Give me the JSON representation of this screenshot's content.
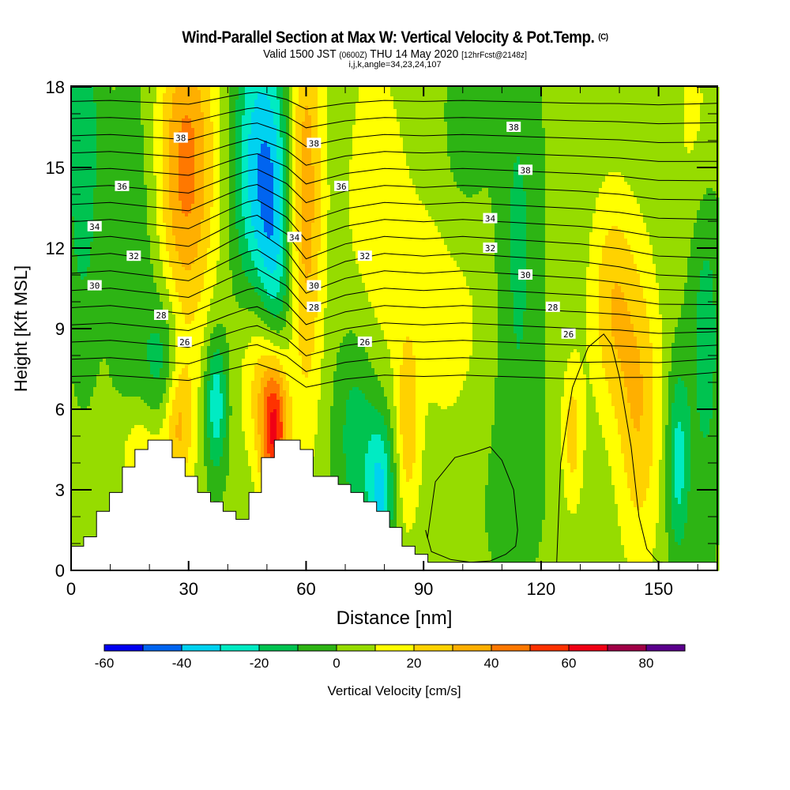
{
  "header": {
    "title": "Wind-Parallel Section at Max W: Vertical Velocity & Pot.Temp.",
    "title_mark": "(C)",
    "valid_prefix": "Valid 1500 JST",
    "valid_utc": "(0600Z)",
    "valid_date": "THU 14 May 2020",
    "forecast": "[12hrFcst@2148z]",
    "indices": "i,j,k,angle=34,23,24,107"
  },
  "chart_data": {
    "type": "heatmap",
    "title": "Wind-Parallel Section at Max W: Vertical Velocity & Pot.Temp.",
    "xlabel": "Distance [nm]",
    "ylabel": "Height [Kft MSL]",
    "xlim": [
      0,
      165
    ],
    "ylim": [
      0,
      18
    ],
    "xticks": [
      "0",
      "30",
      "60",
      "90",
      "120",
      "150"
    ],
    "xtick_values": [
      0,
      30,
      60,
      90,
      120,
      150
    ],
    "yticks": [
      "0",
      "3",
      "6",
      "9",
      "12",
      "15",
      "18"
    ],
    "ytick_values": [
      0,
      3,
      6,
      9,
      12,
      15,
      18
    ],
    "colorbar": {
      "label": "Vertical Velocity [cm/s]",
      "levels": [
        -60,
        -50,
        -40,
        -30,
        -20,
        -10,
        0,
        10,
        20,
        30,
        40,
        50,
        60,
        70,
        80,
        90
      ],
      "tick_labels": [
        "-60",
        "-40",
        "-20",
        "0",
        "20",
        "40",
        "60",
        "80"
      ],
      "tick_values": [
        -60,
        -40,
        -20,
        0,
        20,
        40,
        60,
        80
      ],
      "colors": [
        "#0000f0",
        "#0064f0",
        "#00d2f0",
        "#00ebc3",
        "#00c350",
        "#2db414",
        "#96dc00",
        "#ffff00",
        "#ffd200",
        "#ffaf00",
        "#ff7800",
        "#ff3200",
        "#f00014",
        "#a00046",
        "#5a008c"
      ]
    },
    "vertical_velocity_features": [
      {
        "x": 3,
        "y": 16,
        "w": -22,
        "sx": 3,
        "sy": 5
      },
      {
        "x": 30,
        "y": 15.5,
        "w": 28,
        "sx": 5,
        "sy": 4
      },
      {
        "x": 27,
        "y": 13.5,
        "w": 16,
        "sx": 6,
        "sy": 5
      },
      {
        "x": 47,
        "y": 15,
        "w": -35,
        "sx": 4,
        "sy": 4
      },
      {
        "x": 52,
        "y": 11.5,
        "w": -32,
        "sx": 3,
        "sy": 5
      },
      {
        "x": 60,
        "y": 14,
        "w": 32,
        "sx": 3,
        "sy": 6
      },
      {
        "x": 52,
        "y": 5.2,
        "w": 62,
        "sx": 2.5,
        "sy": 2
      },
      {
        "x": 49,
        "y": 7.5,
        "w": 28,
        "sx": 4,
        "sy": 2.5
      },
      {
        "x": 27,
        "y": 5.5,
        "w": 30,
        "sx": 3,
        "sy": 1.8
      },
      {
        "x": 18,
        "y": 4.2,
        "w": 22,
        "sx": 4,
        "sy": 1.5
      },
      {
        "x": 37,
        "y": 6.2,
        "w": -32,
        "sx": 2,
        "sy": 1.8
      },
      {
        "x": 24,
        "y": 7.5,
        "w": -22,
        "sx": 3,
        "sy": 2
      },
      {
        "x": 79,
        "y": 3,
        "w": -35,
        "sx": 2.5,
        "sy": 2
      },
      {
        "x": 73,
        "y": 5.2,
        "w": -22,
        "sx": 4,
        "sy": 3
      },
      {
        "x": 86,
        "y": 5.5,
        "w": 22,
        "sx": 2,
        "sy": 2.5
      },
      {
        "x": 108,
        "y": 3,
        "w": -5,
        "sx": 10,
        "sy": 3
      },
      {
        "x": 128,
        "y": 5,
        "w": 22,
        "sx": 2,
        "sy": 2
      },
      {
        "x": 138,
        "y": 10,
        "w": 24,
        "sx": 4,
        "sy": 3
      },
      {
        "x": 145,
        "y": 6,
        "w": 26,
        "sx": 4,
        "sy": 4
      },
      {
        "x": 155,
        "y": 4,
        "w": -28,
        "sx": 2,
        "sy": 2.5
      },
      {
        "x": 162,
        "y": 9,
        "w": -18,
        "sx": 3,
        "sy": 5
      },
      {
        "x": 100,
        "y": 16,
        "w": -16,
        "sx": 5,
        "sy": 3
      },
      {
        "x": 114,
        "y": 12,
        "w": -16,
        "sx": 4,
        "sy": 6
      },
      {
        "x": 97,
        "y": 11,
        "w": 12,
        "sx": 8,
        "sy": 6
      },
      {
        "x": 77,
        "y": 12.5,
        "w": 12,
        "sx": 6,
        "sy": 6
      },
      {
        "x": 160,
        "y": 16.5,
        "w": 12,
        "sx": 4,
        "sy": 3
      },
      {
        "x": 18,
        "y": 11,
        "w": -14,
        "sx": 5,
        "sy": 6
      }
    ],
    "background_w": 3,
    "potential_temperature": {
      "levels": [
        24,
        25,
        26,
        27,
        28,
        29,
        30,
        31,
        32,
        33,
        34,
        35,
        36,
        37,
        38,
        39,
        40
      ],
      "base_height_kft": 8.5,
      "kft_per_level": 0.64,
      "profile_x": [
        0,
        10,
        20,
        30,
        40,
        47,
        55,
        60,
        70,
        80,
        90,
        100,
        110,
        120,
        130,
        140,
        150,
        165
      ],
      "profile_dy": [
        0,
        0.1,
        -0.1,
        -0.3,
        0.5,
        1.0,
        0.2,
        -0.8,
        -0.2,
        0.1,
        0.0,
        0.1,
        0.0,
        -0.1,
        -0.2,
        -0.4,
        -0.7,
        -0.8
      ],
      "labels": [
        {
          "text": "38",
          "x": 28,
          "y": 16.1
        },
        {
          "text": "38",
          "x": 62,
          "y": 15.9
        },
        {
          "text": "38",
          "x": 113,
          "y": 16.5
        },
        {
          "text": "38",
          "x": 116,
          "y": 14.9
        },
        {
          "text": "36",
          "x": 13,
          "y": 14.3
        },
        {
          "text": "36",
          "x": 69,
          "y": 14.3
        },
        {
          "text": "34",
          "x": 6,
          "y": 12.8
        },
        {
          "text": "34",
          "x": 57,
          "y": 12.4
        },
        {
          "text": "34",
          "x": 107,
          "y": 13.1
        },
        {
          "text": "32",
          "x": 16,
          "y": 11.7
        },
        {
          "text": "32",
          "x": 75,
          "y": 11.7
        },
        {
          "text": "32",
          "x": 107,
          "y": 12.0
        },
        {
          "text": "30",
          "x": 6,
          "y": 10.6
        },
        {
          "text": "30",
          "x": 62,
          "y": 10.6
        },
        {
          "text": "30",
          "x": 116,
          "y": 11.0
        },
        {
          "text": "28",
          "x": 23,
          "y": 9.5
        },
        {
          "text": "28",
          "x": 62,
          "y": 9.8
        },
        {
          "text": "28",
          "x": 123,
          "y": 9.8
        },
        {
          "text": "26",
          "x": 29,
          "y": 8.5
        },
        {
          "text": "26",
          "x": 75,
          "y": 8.5
        },
        {
          "text": "26",
          "x": 127,
          "y": 8.8
        }
      ]
    },
    "terrain": {
      "x": [
        0,
        3.2,
        6.5,
        9.8,
        13.1,
        16.3,
        19.6,
        25.8,
        29.1,
        32.3,
        35.6,
        38.8,
        42.1,
        45.4,
        48.6,
        51.9,
        58.5,
        61.8,
        68.2,
        71.4,
        74.7,
        78.0,
        81.3,
        84.5,
        87.8,
        91.1,
        165
      ],
      "height_kft": [
        0.9,
        1.25,
        2.2,
        2.9,
        3.85,
        4.5,
        4.85,
        4.2,
        3.5,
        2.9,
        2.55,
        2.2,
        1.9,
        2.9,
        4.2,
        4.85,
        4.5,
        3.5,
        3.2,
        2.9,
        2.55,
        2.2,
        1.6,
        0.9,
        0.6,
        0.3,
        0.3
      ]
    },
    "closed_contours": [
      {
        "x": [
          91,
          93,
          98,
          103,
          107,
          110,
          113,
          114,
          113.5,
          111,
          107,
          102,
          97,
          92,
          90.5,
          91
        ],
        "y": [
          1.2,
          3.3,
          4.2,
          4.4,
          4.6,
          4.1,
          3.0,
          1.5,
          0.9,
          0.6,
          0.35,
          0.3,
          0.4,
          0.7,
          1.5,
          1.2
        ]
      },
      {
        "x": [
          124,
          125,
          128,
          132,
          136,
          138,
          140,
          143,
          145,
          147,
          149,
          150,
          151
        ],
        "y": [
          0.3,
          4.0,
          6.8,
          8.3,
          8.8,
          8.4,
          7.2,
          4.6,
          2.0,
          0.8,
          0.45,
          0.3,
          0.3
        ]
      }
    ]
  }
}
